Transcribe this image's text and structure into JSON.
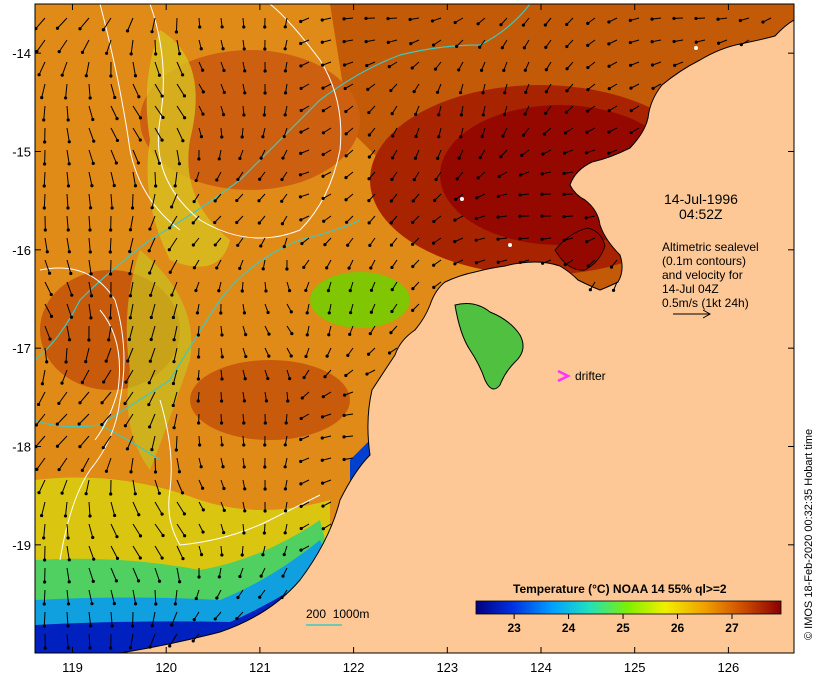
{
  "map": {
    "date": "14-Jul-1996",
    "time": "04:52Z",
    "legend_lines": [
      "Altimetric sealevel",
      "(0.1m contours)",
      "and velocity for",
      "14-Jul 04Z",
      "0.5m/s (1kt 24h)"
    ],
    "drifter_label": "drifter",
    "bathymetry_label": "200  1000m",
    "credit": "© IMOS 18-Feb-2020 00:32:35 Hobart time",
    "x_ticks": [
      "119",
      "120",
      "121",
      "122",
      "123",
      "124",
      "125",
      "126"
    ],
    "y_ticks": [
      "-14",
      "-15",
      "-16",
      "-17",
      "-18",
      "-19"
    ],
    "lon_range": [
      118.6,
      126.7
    ],
    "lat_range": [
      -20.1,
      -13.5
    ],
    "colors": {
      "land": "#fdc896",
      "drifter": "#ff33ff",
      "contour": "#ffffff",
      "bathy": "#40c8c0"
    }
  },
  "colorbar": {
    "title": "Temperature (°C) NOAA 14 55% ql>=2",
    "ticks": [
      "23",
      "24",
      "25",
      "26",
      "27"
    ],
    "range": [
      22.3,
      27.9
    ]
  }
}
